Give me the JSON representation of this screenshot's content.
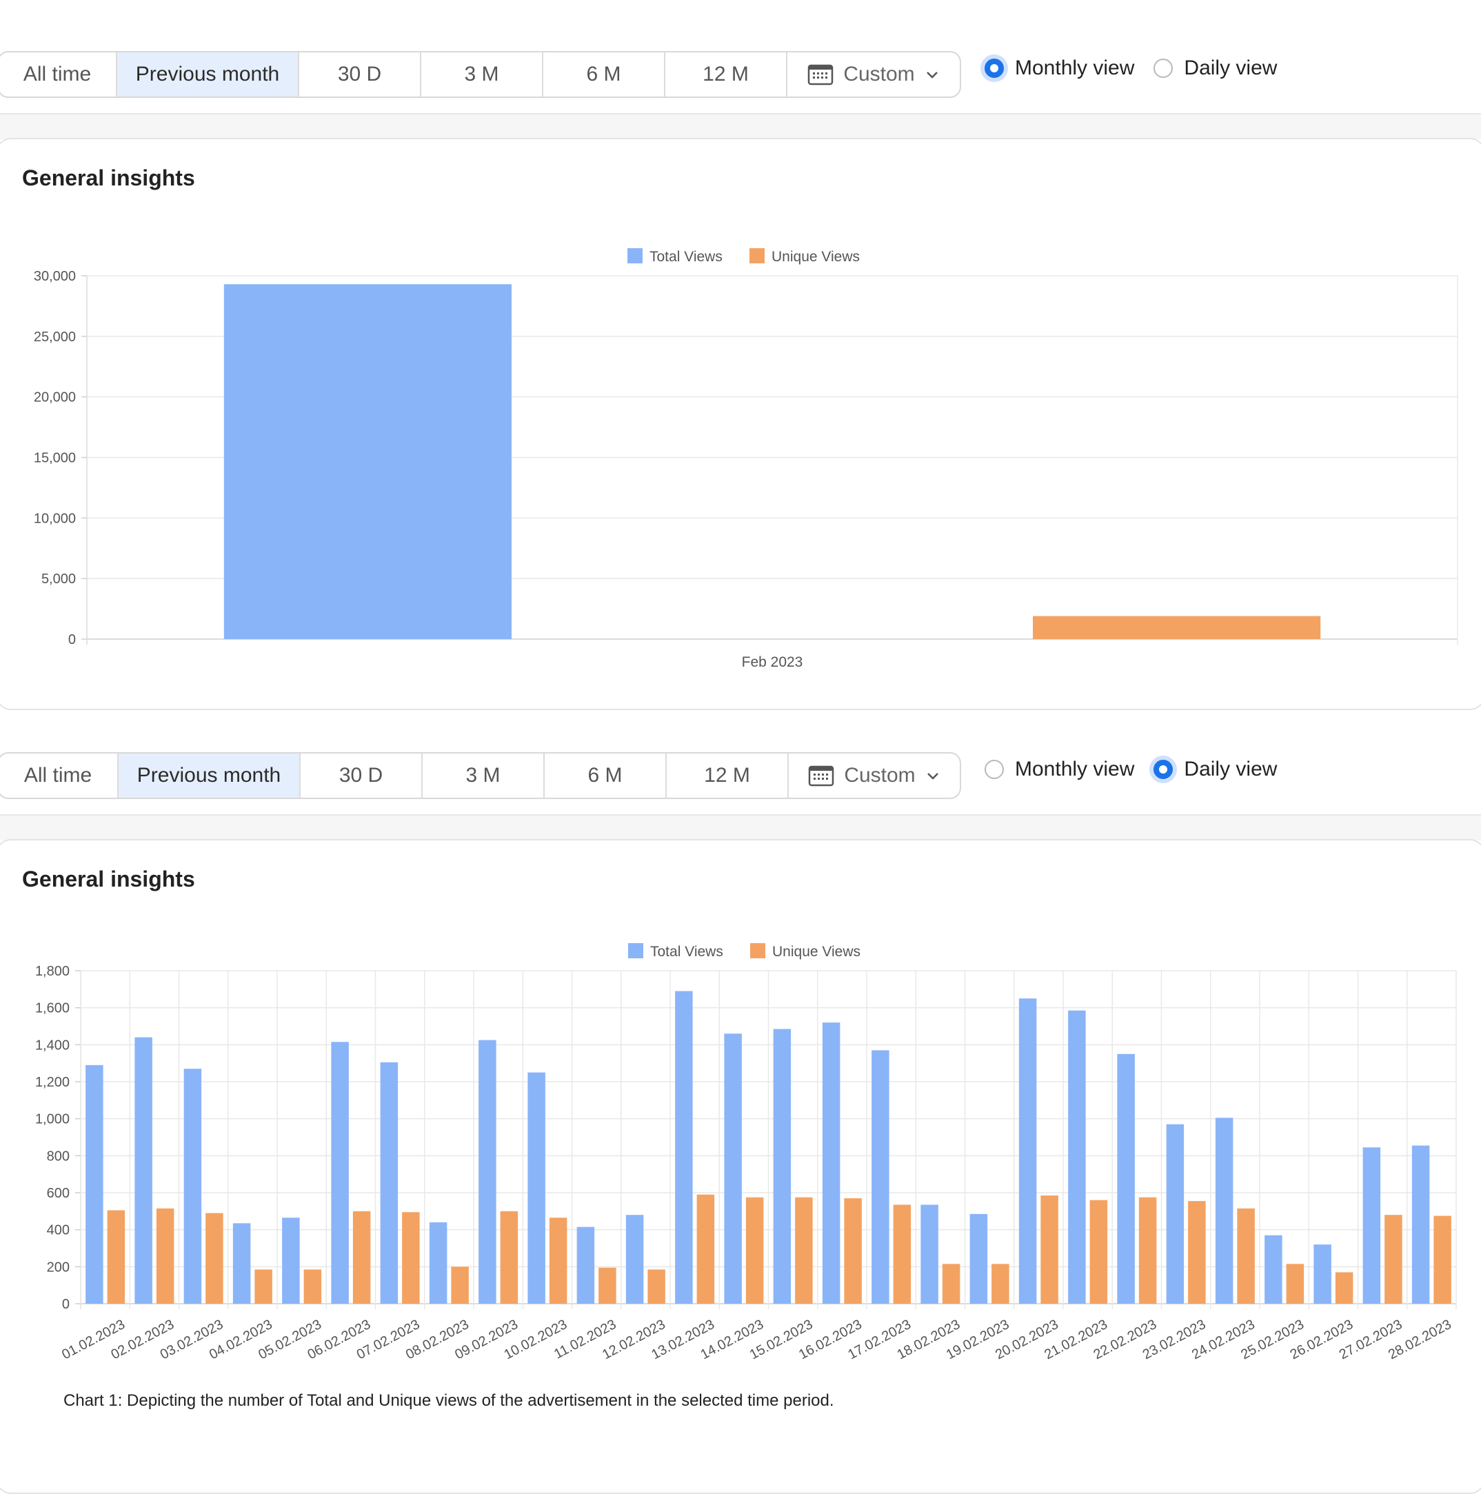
{
  "toolbar1": {
    "segments": [
      "All time",
      "Previous month",
      "30 D",
      "3 M",
      "6 M",
      "12 M"
    ],
    "active_segment": 1,
    "custom_label": "Custom",
    "radios": [
      {
        "label": "Monthly view",
        "checked": true
      },
      {
        "label": "Daily view",
        "checked": false
      }
    ]
  },
  "card1": {
    "title": "General insights"
  },
  "toolbar2": {
    "segments": [
      "All time",
      "Previous month",
      "30 D",
      "3 M",
      "6 M",
      "12 M"
    ],
    "active_segment": 1,
    "custom_label": "Custom",
    "radios": [
      {
        "label": "Monthly view",
        "checked": false
      },
      {
        "label": "Daily view",
        "checked": true
      }
    ]
  },
  "card2": {
    "title": "General insights"
  },
  "caption": "Chart 1: Depicting the number of Total and Unique views of the advertisement in the selected time period.",
  "colors": {
    "total": "#8ab4f8",
    "unique": "#f4a261",
    "accent": "#1a73e8"
  },
  "icons": {
    "calendar": "calendar-icon",
    "chevron": "chevron-down-icon"
  },
  "chart_data": [
    {
      "type": "bar",
      "title": "",
      "legend": [
        "Total Views",
        "Unique Views"
      ],
      "legend_position": "top-center",
      "categories": [
        "Feb 2023"
      ],
      "series": [
        {
          "name": "Total Views",
          "values": [
            29300
          ]
        },
        {
          "name": "Unique Views",
          "values": [
            1900
          ]
        }
      ],
      "ylim": [
        0,
        30000
      ],
      "yticks": [
        "0",
        "5,000",
        "10,000",
        "15,000",
        "20,000",
        "25,000",
        "30,000"
      ],
      "grid": true
    },
    {
      "type": "bar",
      "title": "",
      "legend": [
        "Total Views",
        "Unique Views"
      ],
      "legend_position": "top-center",
      "categories": [
        "01.02.2023",
        "02.02.2023",
        "03.02.2023",
        "04.02.2023",
        "05.02.2023",
        "06.02.2023",
        "07.02.2023",
        "08.02.2023",
        "09.02.2023",
        "10.02.2023",
        "11.02.2023",
        "12.02.2023",
        "13.02.2023",
        "14.02.2023",
        "15.02.2023",
        "16.02.2023",
        "17.02.2023",
        "18.02.2023",
        "19.02.2023",
        "20.02.2023",
        "21.02.2023",
        "22.02.2023",
        "23.02.2023",
        "24.02.2023",
        "25.02.2023",
        "26.02.2023",
        "27.02.2023",
        "28.02.2023"
      ],
      "series": [
        {
          "name": "Total Views",
          "values": [
            1290,
            1440,
            1270,
            435,
            465,
            1415,
            1305,
            440,
            1425,
            1250,
            415,
            480,
            1690,
            1460,
            1485,
            1520,
            1370,
            535,
            485,
            1650,
            1585,
            1350,
            970,
            1005,
            370,
            320,
            845,
            855
          ]
        },
        {
          "name": "Unique Views",
          "values": [
            505,
            515,
            490,
            185,
            185,
            500,
            495,
            200,
            500,
            465,
            195,
            185,
            590,
            575,
            575,
            570,
            535,
            215,
            215,
            585,
            560,
            575,
            555,
            515,
            215,
            170,
            480,
            475
          ]
        }
      ],
      "ylim": [
        0,
        1800
      ],
      "yticks": [
        "0",
        "200",
        "400",
        "600",
        "800",
        "1,000",
        "1,200",
        "1,400",
        "1,600",
        "1,800"
      ],
      "grid": true
    }
  ]
}
